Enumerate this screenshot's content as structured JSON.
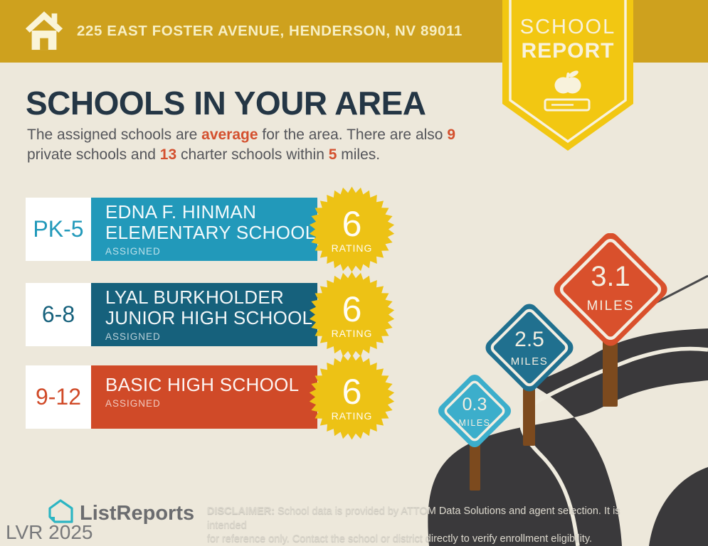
{
  "header": {
    "address": "225 EAST FOSTER AVENUE, HENDERSON, NV 89011"
  },
  "badge": {
    "line1": "SCHOOL",
    "line2": "REPORT"
  },
  "title": "SCHOOLS IN YOUR AREA",
  "intro": {
    "seg1": "The assigned schools are ",
    "avg": "average",
    "seg2": " for the area. There are also ",
    "private_count": "9",
    "seg3": " private schools and ",
    "charter_count": "13",
    "seg4": " charter schools within ",
    "miles_count": "5",
    "seg5": " miles."
  },
  "schools": [
    {
      "grades": "PK-5",
      "name_line1": "EDNA F. HINMAN",
      "name_line2": "ELEMENTARY SCHOOL",
      "status": "ASSIGNED",
      "rating": "6",
      "rating_label": "RATING",
      "color": "#2299BA"
    },
    {
      "grades": "6-8",
      "name_line1": "LYAL BURKHOLDER",
      "name_line2": "JUNIOR HIGH SCHOOL",
      "status": "ASSIGNED",
      "rating": "6",
      "rating_label": "RATING",
      "color": "#16617C"
    },
    {
      "grades": "9-12",
      "name_line1": "BASIC HIGH SCHOOL",
      "name_line2": "",
      "status": "ASSIGNED",
      "rating": "6",
      "rating_label": "RATING",
      "color": "#D04A28"
    }
  ],
  "signs": [
    {
      "distance": "0.3",
      "unit": "MILES",
      "color": "#3CAECB"
    },
    {
      "distance": "2.5",
      "unit": "MILES",
      "color": "#20708F"
    },
    {
      "distance": "3.1",
      "unit": "MILES",
      "color": "#D9502C"
    }
  ],
  "footer": {
    "brand": "ListReports",
    "watermark": "LVR 2025",
    "disclaimer_label": "DISCLAIMER:",
    "disclaimer_line1": " School data is provided by ATTOM Data Solutions and agent selection. It is intended",
    "disclaimer_line2": "for reference only. Contact the school or district directly to verify enrollment eligibility."
  },
  "colors": {
    "header_gold": "#CEA11E",
    "badge_yellow": "#F2C712",
    "background_cream": "#EDE8DB",
    "title_navy": "#243645",
    "body_gray": "#54555A",
    "accent_orange": "#D4502E",
    "star_yellow": "#EDC215",
    "road_charcoal": "#3A393B",
    "post_brown": "#7C4A1E",
    "brand_teal": "#2CB5C3"
  }
}
